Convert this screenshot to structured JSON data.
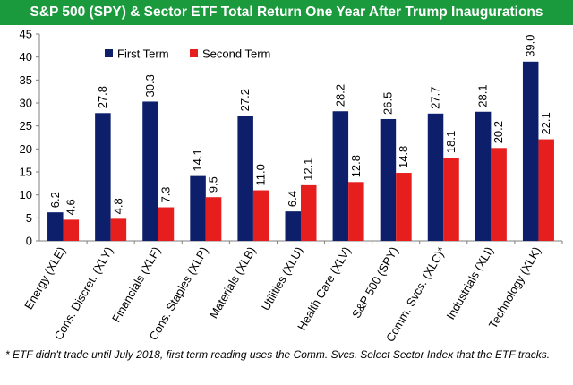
{
  "banner": {
    "title": "S&P 500 (SPY) & Sector ETF Total Return One Year After Trump Inaugurations",
    "background": "#1a9a3c"
  },
  "footnote": "* ETF didn't trade until July 2018, first term reading uses the Comm. Svcs. Select Sector Index that the ETF tracks.",
  "chart_data": {
    "type": "bar",
    "title": "",
    "xlabel": "",
    "ylabel": "",
    "ylim": [
      0,
      45
    ],
    "yticks": [
      "0",
      "5",
      "10",
      "15",
      "20",
      "25",
      "30",
      "35",
      "40",
      "45"
    ],
    "grid": false,
    "legend_position": "top-left",
    "categories": [
      "Energy (XLE)",
      "Cons. Discret. (XLY)",
      "Financials (XLF)",
      "Cons. Staples (XLP)",
      "Materials (XLB)",
      "Utilities (XLU)",
      "Health Care (XLV)",
      "S&P 500 (SPY)",
      "Comm. Svcs. (XLC)*",
      "Industrials (XLI)",
      "Technology (XLK)"
    ],
    "series": [
      {
        "name": "First Term",
        "color": "#0d1f6b",
        "values": [
          6.2,
          27.8,
          30.3,
          14.1,
          27.2,
          6.4,
          28.2,
          26.5,
          27.7,
          28.1,
          39.0
        ],
        "labels": [
          "6.2",
          "27.8",
          "30.3",
          "14.1",
          "27.2",
          "6.4",
          "28.2",
          "26.5",
          "27.7",
          "28.1",
          "39.0"
        ]
      },
      {
        "name": "Second Term",
        "color": "#e61e1e",
        "values": [
          4.6,
          4.8,
          7.3,
          9.5,
          11.0,
          12.1,
          12.8,
          14.8,
          18.1,
          20.2,
          22.1
        ],
        "labels": [
          "4.6",
          "4.8",
          "7.3",
          "9.5",
          "11.0",
          "12.1",
          "12.8",
          "14.8",
          "18.1",
          "20.2",
          "22.1"
        ]
      }
    ]
  }
}
